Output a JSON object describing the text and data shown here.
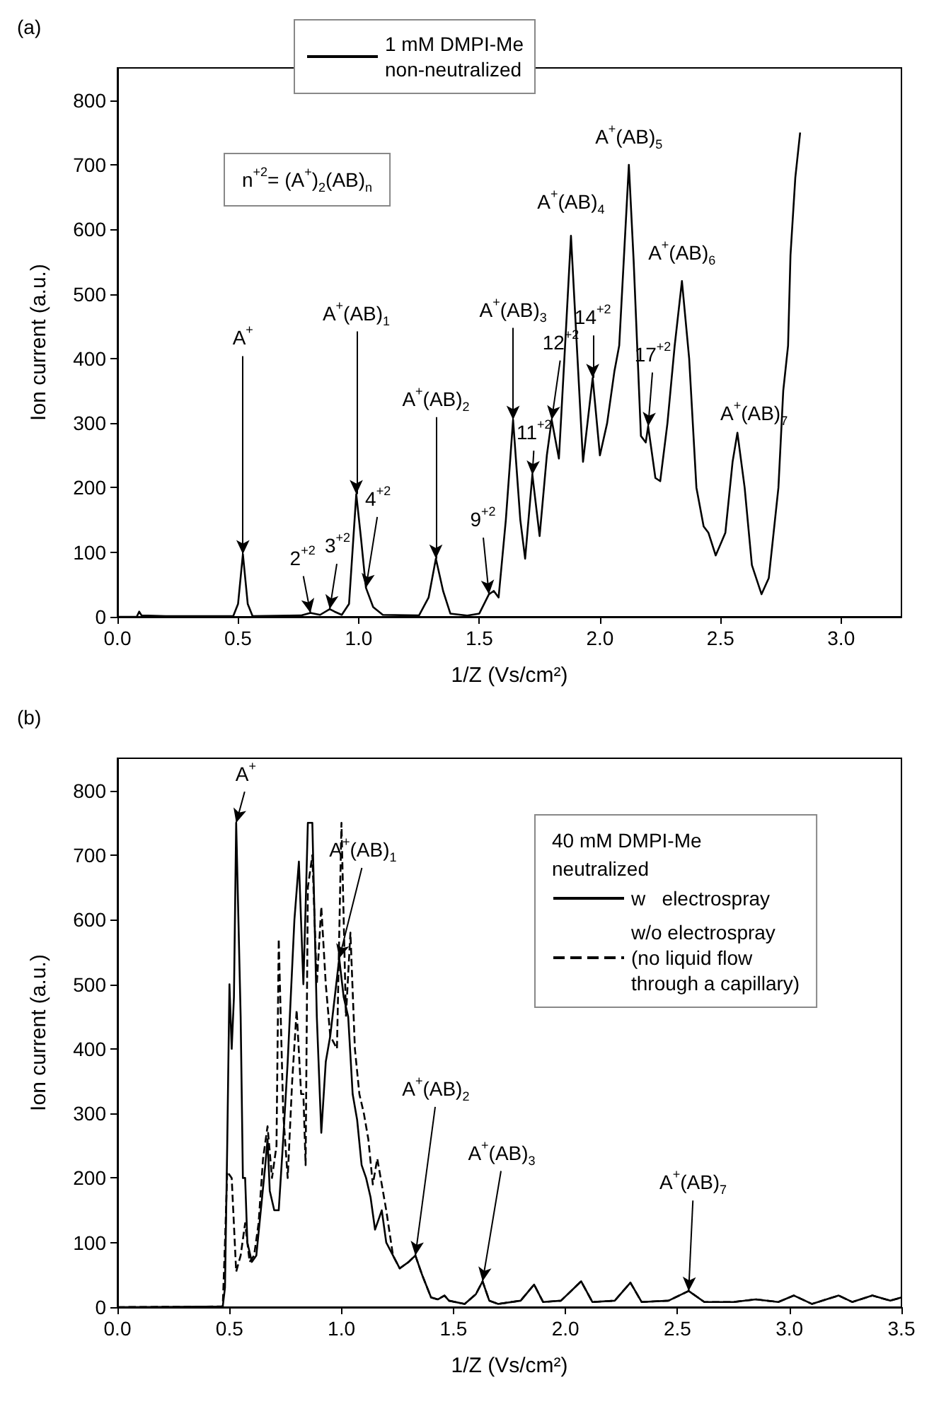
{
  "chart_data": [
    {
      "type": "line",
      "xlabel": "1/Z (Vs/cm²)",
      "ylabel": "Ion current (a.u.)",
      "xlim": [
        0,
        3.25
      ],
      "ylim": [
        0,
        850
      ],
      "xticks": [
        {
          "value": 0,
          "label": "0.0"
        },
        {
          "value": 0.5,
          "label": "0.5"
        },
        {
          "value": 1,
          "label": "1.0"
        },
        {
          "value": 1.5,
          "label": "1.5"
        },
        {
          "value": 2,
          "label": "2.0"
        },
        {
          "value": 2.5,
          "label": "2.5"
        },
        {
          "value": 3,
          "label": "3.0"
        }
      ],
      "yticks": [
        0,
        100,
        200,
        300,
        400,
        500,
        600,
        700,
        800
      ],
      "grid": false,
      "legend": "top",
      "marker": "none",
      "series": [
        {
          "name": "1 mM DMPI-Me\nnon-neutralized",
          "color": "#000000",
          "line_style": "solid",
          "x": [
            0,
            0.08,
            0.09,
            0.1,
            0.2,
            0.48,
            0.5,
            0.52,
            0.54,
            0.56,
            0.76,
            0.8,
            0.84,
            0.88,
            0.9,
            0.93,
            0.96,
            0.99,
            1.01,
            1.03,
            1.06,
            1.1,
            1.25,
            1.29,
            1.32,
            1.35,
            1.38,
            1.45,
            1.5,
            1.54,
            1.56,
            1.58,
            1.61,
            1.64,
            1.67,
            1.69,
            1.72,
            1.75,
            1.78,
            1.8,
            1.83,
            1.86,
            1.88,
            1.91,
            1.93,
            1.97,
            2,
            2.03,
            2.06,
            2.08,
            2.1,
            2.12,
            2.14,
            2.17,
            2.19,
            2.2,
            2.23,
            2.25,
            2.28,
            2.31,
            2.34,
            2.37,
            2.4,
            2.43,
            2.45,
            2.48,
            2.52,
            2.55,
            2.57,
            2.6,
            2.63,
            2.67,
            2.7,
            2.74,
            2.76,
            2.78,
            2.79,
            2.81,
            2.83
          ],
          "values": [
            0,
            0,
            8,
            2,
            1,
            1,
            20,
            97,
            20,
            1,
            2,
            6,
            3,
            12,
            8,
            3,
            20,
            190,
            120,
            45,
            15,
            3,
            2,
            30,
            90,
            40,
            5,
            2,
            5,
            35,
            40,
            30,
            150,
            305,
            150,
            90,
            220,
            125,
            250,
            305,
            245,
            450,
            590,
            380,
            240,
            370,
            250,
            300,
            380,
            420,
            560,
            700,
            550,
            280,
            270,
            295,
            215,
            210,
            300,
            420,
            520,
            400,
            200,
            140,
            130,
            95,
            130,
            240,
            285,
            200,
            80,
            35,
            60,
            200,
            350,
            420,
            560,
            680,
            750
          ]
        }
      ],
      "annotations": [
        {
          "text": "A$^{+}$",
          "x": 0.52,
          "y": 97
        },
        {
          "text": "A$^{+}$(AB)$_{1}$",
          "x": 0.99,
          "y": 190
        },
        {
          "text": "A$^{+}$(AB)$_{2}$",
          "x": 1.32,
          "y": 90
        },
        {
          "text": "A$^{+}$(AB)$_{3}$",
          "x": 1.64,
          "y": 305
        },
        {
          "text": "A$^{+}$(AB)$_{4}$",
          "x": 1.88,
          "y": 590
        },
        {
          "text": "A$^{+}$(AB)$_{5}$",
          "x": 2.12,
          "y": 700
        },
        {
          "text": "A$^{+}$(AB)$_{6}$",
          "x": 2.34,
          "y": 520
        },
        {
          "text": "A$^{+}$(AB)$_{7}$",
          "x": 2.58,
          "y": 285
        },
        {
          "text": "2$^{+2}$",
          "x": 0.8,
          "y": 6
        },
        {
          "text": "3$^{+2}$",
          "x": 0.88,
          "y": 12
        },
        {
          "text": "4$^{+2}$",
          "x": 1.03,
          "y": 45
        },
        {
          "text": "9$^{+2}$",
          "x": 1.54,
          "y": 35
        },
        {
          "text": "11$^{+2}$",
          "x": 1.72,
          "y": 220
        },
        {
          "text": "12$^{+2}$",
          "x": 1.8,
          "y": 305
        },
        {
          "text": "14$^{+2}$",
          "x": 1.97,
          "y": 370
        },
        {
          "text": "17$^{+2}$",
          "x": 2.2,
          "y": 295
        },
        "(a)",
        "n$^{+2}$= (A$^{+}$)$_{2}$(AB)$_{n}$"
      ]
    },
    {
      "type": "line",
      "xlabel": "1/Z (Vs/cm²)",
      "ylabel": "Ion current (a.u.)",
      "xlim": [
        0,
        3.5
      ],
      "ylim": [
        0,
        850
      ],
      "xticks": [
        {
          "value": 0,
          "label": "0.0"
        },
        {
          "value": 0.5,
          "label": "0.5"
        },
        {
          "value": 1,
          "label": "1.0"
        },
        {
          "value": 1.5,
          "label": "1.5"
        },
        {
          "value": 2,
          "label": "2.0"
        },
        {
          "value": 2.5,
          "label": "2.5"
        },
        {
          "value": 3,
          "label": "3.0"
        },
        {
          "value": 3.5,
          "label": "3.5"
        }
      ],
      "yticks": [
        0,
        100,
        200,
        300,
        400,
        500,
        600,
        700,
        800
      ],
      "grid": false,
      "legend": "top right",
      "legend_title": "40 mM DMPI-Me\nneutralized",
      "marker": "none",
      "series": [
        {
          "name": "w   electrospray",
          "color": "#000000",
          "line_style": "solid",
          "x": [
            0,
            0.47,
            0.48,
            0.49,
            0.5,
            0.51,
            0.52,
            0.53,
            0.55,
            0.56,
            0.57,
            0.58,
            0.6,
            0.62,
            0.64,
            0.66,
            0.67,
            0.68,
            0.7,
            0.72,
            0.74,
            0.76,
            0.79,
            0.81,
            0.83,
            0.84,
            0.85,
            0.87,
            0.89,
            0.91,
            0.93,
            0.95,
            0.97,
            0.99,
            1.01,
            1.03,
            1.05,
            1.07,
            1.09,
            1.11,
            1.13,
            1.15,
            1.18,
            1.2,
            1.23,
            1.26,
            1.3,
            1.33,
            1.36,
            1.4,
            1.43,
            1.46,
            1.48,
            1.55,
            1.6,
            1.63,
            1.66,
            1.7,
            1.8,
            1.86,
            1.9,
            1.98,
            2.07,
            2.12,
            2.22,
            2.29,
            2.34,
            2.46,
            2.55,
            2.62,
            2.75,
            2.85,
            2.95,
            3.02,
            3.1,
            3.22,
            3.28,
            3.37,
            3.45,
            3.5
          ],
          "values": [
            0,
            1,
            30,
            250,
            500,
            400,
            480,
            750,
            450,
            200,
            200,
            100,
            70,
            80,
            150,
            220,
            260,
            180,
            150,
            150,
            260,
            380,
            600,
            690,
            500,
            620,
            750,
            750,
            450,
            270,
            380,
            420,
            480,
            540,
            480,
            450,
            330,
            290,
            220,
            200,
            170,
            120,
            150,
            100,
            80,
            60,
            70,
            80,
            50,
            15,
            12,
            18,
            10,
            5,
            20,
            40,
            10,
            5,
            10,
            35,
            8,
            10,
            40,
            8,
            10,
            38,
            8,
            10,
            25,
            8,
            8,
            12,
            8,
            18,
            5,
            18,
            8,
            18,
            10,
            15
          ]
        },
        {
          "name": "w/o electrospray\n(no liquid flow\nthrough a capillary)",
          "color": "#000000",
          "line_style": "dashed",
          "x": [
            0,
            0.47,
            0.48,
            0.49,
            0.51,
            0.53,
            0.55,
            0.57,
            0.59,
            0.61,
            0.63,
            0.65,
            0.67,
            0.69,
            0.71,
            0.72,
            0.74,
            0.76,
            0.78,
            0.8,
            0.82,
            0.83,
            0.84,
            0.85,
            0.87,
            0.89,
            0.91,
            0.93,
            0.95,
            0.98,
            1,
            1.02,
            1.04,
            1.06,
            1.08,
            1.1,
            1.12,
            1.14,
            1.16,
            1.18,
            1.2,
            1.23,
            1.26,
            1.3,
            1.33,
            1.36,
            1.4,
            1.43,
            1.46,
            1.48,
            1.55,
            1.6,
            1.63,
            1.66,
            1.7,
            1.8,
            1.86,
            1.9,
            1.98,
            2.07,
            2.12,
            2.22,
            2.29,
            2.34,
            2.46,
            2.55,
            2.62,
            2.75,
            2.85,
            2.95,
            3.02,
            3.1,
            3.22,
            3.28,
            3.37,
            3.45,
            3.5
          ],
          "values": [
            0,
            1,
            100,
            210,
            200,
            55,
            80,
            130,
            70,
            80,
            130,
            230,
            280,
            200,
            250,
            570,
            300,
            200,
            350,
            460,
            330,
            330,
            220,
            650,
            700,
            500,
            620,
            500,
            420,
            400,
            750,
            450,
            580,
            400,
            330,
            300,
            260,
            190,
            230,
            190,
            150,
            80,
            60,
            70,
            80,
            50,
            15,
            12,
            18,
            10,
            5,
            20,
            40,
            10,
            5,
            10,
            35,
            8,
            10,
            40,
            8,
            10,
            38,
            8,
            10,
            25,
            8,
            8,
            12,
            8,
            18,
            5,
            18,
            8,
            18,
            10,
            15
          ]
        }
      ],
      "annotations": [
        {
          "text": "A$^{+}$",
          "x": 0.53,
          "y": 750
        },
        {
          "text": "A$^{+}$(AB)$_{1}$",
          "x": 0.99,
          "y": 540
        },
        {
          "text": "A$^{+}$(AB)$_{2}$",
          "x": 1.33,
          "y": 80
        },
        {
          "text": "A$^{+}$(AB)$_{3}$",
          "x": 1.63,
          "y": 40
        },
        {
          "text": "A$^{+}$(AB)$_{7}$",
          "x": 2.55,
          "y": 25
        },
        "(b)"
      ]
    }
  ]
}
